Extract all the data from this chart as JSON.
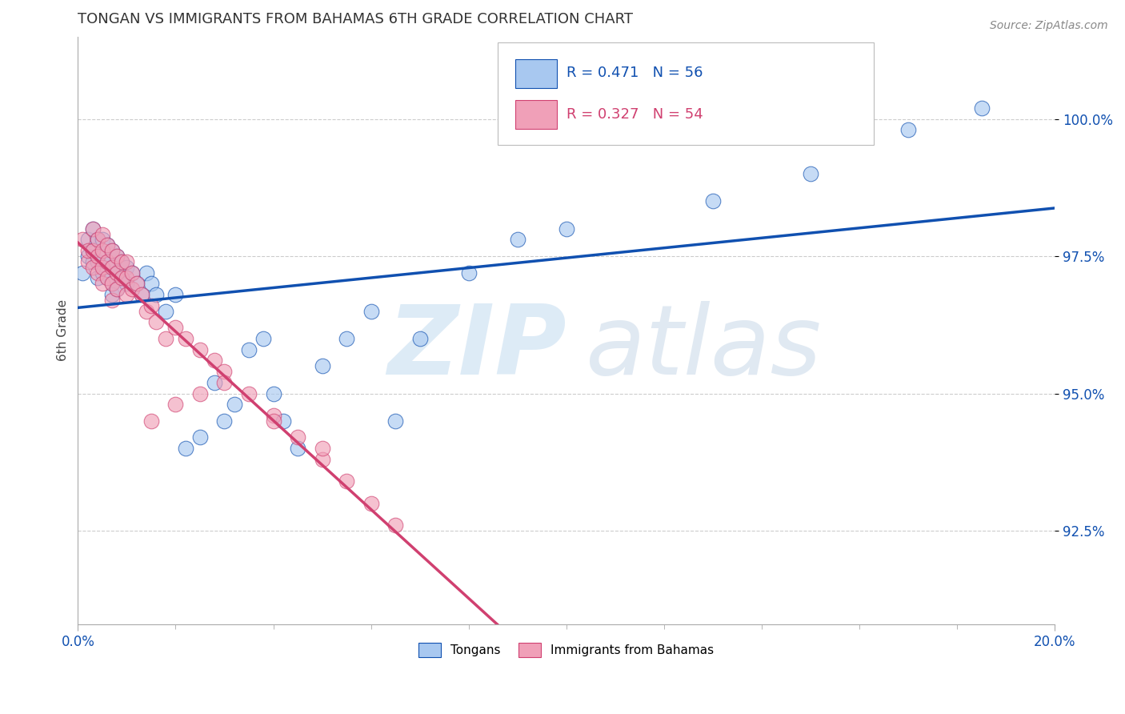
{
  "title": "TONGAN VS IMMIGRANTS FROM BAHAMAS 6TH GRADE CORRELATION CHART",
  "source_text": "Source: ZipAtlas.com",
  "ylabel": "6th Grade",
  "x_min": 0.0,
  "x_max": 0.2,
  "y_min": 0.908,
  "y_max": 1.015,
  "yticks": [
    0.925,
    0.95,
    0.975,
    1.0
  ],
  "ytick_labels": [
    "92.5%",
    "95.0%",
    "97.5%",
    "100.0%"
  ],
  "xticks": [
    0.0,
    0.2
  ],
  "xtick_labels": [
    "0.0%",
    "20.0%"
  ],
  "legend_r1": "R = 0.471   N = 56",
  "legend_r2": "R = 0.327   N = 54",
  "legend_label1": "Tongans",
  "legend_label2": "Immigrants from Bahamas",
  "color_blue": "#A8C8F0",
  "color_pink": "#F0A0B8",
  "line_color_blue": "#1050B0",
  "line_color_pink": "#D04070",
  "tongans_x": [
    0.001,
    0.002,
    0.002,
    0.003,
    0.003,
    0.003,
    0.004,
    0.004,
    0.004,
    0.005,
    0.005,
    0.005,
    0.006,
    0.006,
    0.006,
    0.007,
    0.007,
    0.007,
    0.007,
    0.008,
    0.008,
    0.008,
    0.009,
    0.009,
    0.01,
    0.01,
    0.011,
    0.012,
    0.013,
    0.014,
    0.015,
    0.016,
    0.018,
    0.02,
    0.022,
    0.025,
    0.028,
    0.03,
    0.032,
    0.035,
    0.038,
    0.04,
    0.042,
    0.045,
    0.05,
    0.055,
    0.06,
    0.065,
    0.07,
    0.08,
    0.09,
    0.1,
    0.13,
    0.15,
    0.17,
    0.185
  ],
  "tongans_y": [
    0.972,
    0.978,
    0.975,
    0.98,
    0.976,
    0.974,
    0.978,
    0.974,
    0.971,
    0.978,
    0.975,
    0.972,
    0.977,
    0.974,
    0.971,
    0.976,
    0.973,
    0.97,
    0.968,
    0.975,
    0.972,
    0.969,
    0.974,
    0.971,
    0.973,
    0.97,
    0.972,
    0.97,
    0.968,
    0.972,
    0.97,
    0.968,
    0.965,
    0.968,
    0.94,
    0.942,
    0.952,
    0.945,
    0.948,
    0.958,
    0.96,
    0.95,
    0.945,
    0.94,
    0.955,
    0.96,
    0.965,
    0.945,
    0.96,
    0.972,
    0.978,
    0.98,
    0.985,
    0.99,
    0.998,
    1.002
  ],
  "bahamas_x": [
    0.001,
    0.002,
    0.002,
    0.003,
    0.003,
    0.003,
    0.004,
    0.004,
    0.004,
    0.005,
    0.005,
    0.005,
    0.005,
    0.006,
    0.006,
    0.006,
    0.007,
    0.007,
    0.007,
    0.007,
    0.008,
    0.008,
    0.008,
    0.009,
    0.009,
    0.01,
    0.01,
    0.01,
    0.011,
    0.011,
    0.012,
    0.013,
    0.014,
    0.015,
    0.016,
    0.018,
    0.02,
    0.022,
    0.025,
    0.028,
    0.03,
    0.035,
    0.04,
    0.045,
    0.05,
    0.055,
    0.06,
    0.065,
    0.015,
    0.02,
    0.025,
    0.03,
    0.04,
    0.05
  ],
  "bahamas_y": [
    0.978,
    0.974,
    0.976,
    0.98,
    0.976,
    0.973,
    0.978,
    0.975,
    0.972,
    0.979,
    0.976,
    0.973,
    0.97,
    0.977,
    0.974,
    0.971,
    0.976,
    0.973,
    0.97,
    0.967,
    0.975,
    0.972,
    0.969,
    0.974,
    0.971,
    0.974,
    0.971,
    0.968,
    0.972,
    0.969,
    0.97,
    0.968,
    0.965,
    0.966,
    0.963,
    0.96,
    0.962,
    0.96,
    0.958,
    0.956,
    0.954,
    0.95,
    0.946,
    0.942,
    0.938,
    0.934,
    0.93,
    0.926,
    0.945,
    0.948,
    0.95,
    0.952,
    0.945,
    0.94
  ],
  "watermark_zip": "ZIP",
  "watermark_atlas": "atlas",
  "background_color": "#FFFFFF",
  "grid_color": "#CCCCCC"
}
